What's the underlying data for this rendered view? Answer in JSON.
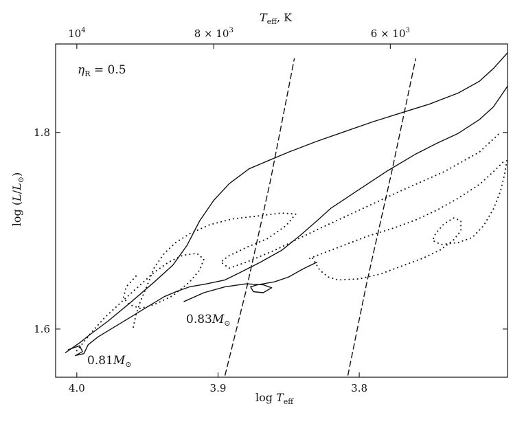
{
  "chart_data": {
    "type": "line",
    "xlabel": "log  T_eff",
    "ylabel": "log (L/L_⊙)",
    "x2label": "T_eff,  K",
    "xlim": [
      4.015,
      3.695
    ],
    "ylim": [
      1.551,
      1.89
    ],
    "x_ticks": [
      {
        "value": 4.0,
        "label": "4.0"
      },
      {
        "value": 3.9,
        "label": "3.9"
      },
      {
        "value": 3.8,
        "label": "3.8"
      }
    ],
    "y_ticks": [
      {
        "value": 1.6,
        "label": "1.6"
      },
      {
        "value": 1.8,
        "label": "1.8"
      }
    ],
    "top_ticks": [
      {
        "value": 4.0,
        "label": "10^4"
      },
      {
        "value": 3.903,
        "label": "8 × 10^3"
      },
      {
        "value": 3.778,
        "label": "6 × 10^3"
      }
    ],
    "annotation": "η_R = 0.5",
    "series_labels": [
      {
        "text": "0.83M_⊙",
        "x": 3.935,
        "y": 1.607
      },
      {
        "text": "0.81M_⊙",
        "x": 3.99,
        "y": 1.565
      }
    ],
    "series": [
      {
        "style": "solid",
        "points": [
          [
            4.008,
            1.576
          ],
          [
            3.998,
            1.586
          ],
          [
            3.991,
            1.594
          ],
          [
            3.978,
            1.608
          ],
          [
            3.962,
            1.627
          ],
          [
            3.945,
            1.648
          ],
          [
            3.932,
            1.665
          ],
          [
            3.922,
            1.685
          ],
          [
            3.913,
            1.71
          ],
          [
            3.903,
            1.731
          ],
          [
            3.892,
            1.748
          ],
          [
            3.878,
            1.763
          ],
          [
            3.865,
            1.771
          ],
          [
            3.85,
            1.78
          ],
          [
            3.83,
            1.791
          ],
          [
            3.81,
            1.801
          ],
          [
            3.79,
            1.811
          ],
          [
            3.77,
            1.82
          ],
          [
            3.75,
            1.829
          ],
          [
            3.73,
            1.84
          ],
          [
            3.715,
            1.852
          ],
          [
            3.705,
            1.865
          ],
          [
            3.695,
            1.881
          ]
        ]
      },
      {
        "style": "solid",
        "points": [
          [
            4.006,
            1.579
          ],
          [
            3.998,
            1.583
          ],
          [
            3.996,
            1.577
          ],
          [
            4.001,
            1.573
          ],
          [
            3.995,
            1.575
          ],
          [
            3.992,
            1.584
          ],
          [
            3.985,
            1.592
          ],
          [
            3.97,
            1.605
          ],
          [
            3.953,
            1.62
          ],
          [
            3.938,
            1.633
          ],
          [
            3.928,
            1.639
          ],
          [
            3.92,
            1.643
          ],
          [
            3.908,
            1.646
          ],
          [
            3.895,
            1.65
          ],
          [
            3.885,
            1.657
          ],
          [
            3.87,
            1.668
          ],
          [
            3.855,
            1.68
          ],
          [
            3.842,
            1.695
          ],
          [
            3.83,
            1.71
          ],
          [
            3.82,
            1.723
          ],
          [
            3.8,
            1.742
          ],
          [
            3.78,
            1.761
          ],
          [
            3.76,
            1.778
          ],
          [
            3.745,
            1.789
          ],
          [
            3.73,
            1.799
          ],
          [
            3.715,
            1.813
          ],
          [
            3.705,
            1.826
          ],
          [
            3.695,
            1.847
          ]
        ]
      },
      {
        "style": "solid",
        "points": [
          [
            3.924,
            1.628
          ],
          [
            3.91,
            1.637
          ],
          [
            3.895,
            1.643
          ],
          [
            3.88,
            1.646
          ],
          [
            3.868,
            1.645
          ],
          [
            3.862,
            1.642
          ],
          [
            3.868,
            1.637
          ],
          [
            3.875,
            1.638
          ],
          [
            3.877,
            1.643
          ],
          [
            3.872,
            1.645
          ],
          [
            3.86,
            1.648
          ],
          [
            3.85,
            1.653
          ],
          [
            3.84,
            1.661
          ],
          [
            3.83,
            1.668
          ]
        ]
      },
      {
        "style": "dotted",
        "points": [
          [
            3.96,
            1.602
          ],
          [
            3.958,
            1.615
          ],
          [
            3.955,
            1.628
          ],
          [
            3.95,
            1.645
          ],
          [
            3.945,
            1.663
          ],
          [
            3.938,
            1.677
          ],
          [
            3.93,
            1.688
          ],
          [
            3.92,
            1.697
          ],
          [
            3.906,
            1.706
          ],
          [
            3.89,
            1.712
          ],
          [
            3.872,
            1.715
          ],
          [
            3.855,
            1.718
          ],
          [
            3.845,
            1.717
          ],
          [
            3.852,
            1.705
          ],
          [
            3.865,
            1.692
          ],
          [
            3.88,
            1.683
          ],
          [
            3.893,
            1.674
          ],
          [
            3.898,
            1.668
          ],
          [
            3.892,
            1.662
          ],
          [
            3.88,
            1.668
          ],
          [
            3.86,
            1.68
          ],
          [
            3.83,
            1.701
          ],
          [
            3.8,
            1.721
          ],
          [
            3.77,
            1.741
          ],
          [
            3.74,
            1.76
          ],
          [
            3.715,
            1.78
          ],
          [
            3.7,
            1.8
          ]
        ]
      },
      {
        "style": "dotted",
        "points": [
          [
            4.0,
            1.578
          ],
          [
            3.99,
            1.596
          ],
          [
            3.98,
            1.612
          ],
          [
            3.968,
            1.628
          ],
          [
            3.955,
            1.645
          ],
          [
            3.945,
            1.658
          ],
          [
            3.935,
            1.668
          ],
          [
            3.925,
            1.675
          ],
          [
            3.915,
            1.677
          ],
          [
            3.91,
            1.671
          ],
          [
            3.913,
            1.66
          ],
          [
            3.92,
            1.648
          ],
          [
            3.932,
            1.634
          ],
          [
            3.945,
            1.625
          ],
          [
            3.955,
            1.621
          ],
          [
            3.963,
            1.625
          ],
          [
            3.967,
            1.632
          ],
          [
            3.965,
            1.643
          ],
          [
            3.958,
            1.654
          ]
        ]
      },
      {
        "style": "dotted",
        "points": [
          [
            3.833,
            1.672
          ],
          [
            3.828,
            1.66
          ],
          [
            3.822,
            1.653
          ],
          [
            3.815,
            1.65
          ],
          [
            3.8,
            1.651
          ],
          [
            3.785,
            1.656
          ],
          [
            3.77,
            1.664
          ],
          [
            3.755,
            1.672
          ],
          [
            3.742,
            1.681
          ],
          [
            3.733,
            1.691
          ],
          [
            3.728,
            1.7
          ],
          [
            3.728,
            1.71
          ],
          [
            3.733,
            1.713
          ],
          [
            3.74,
            1.707
          ],
          [
            3.746,
            1.697
          ],
          [
            3.748,
            1.69
          ],
          [
            3.742,
            1.686
          ],
          [
            3.73,
            1.688
          ],
          [
            3.72,
            1.693
          ],
          [
            3.712,
            1.705
          ],
          [
            3.705,
            1.722
          ],
          [
            3.7,
            1.74
          ],
          [
            3.697,
            1.758
          ],
          [
            3.695,
            1.775
          ]
        ]
      },
      {
        "style": "dotted",
        "points": [
          [
            3.835,
            1.672
          ],
          [
            3.815,
            1.683
          ],
          [
            3.795,
            1.694
          ],
          [
            3.775,
            1.703
          ],
          [
            3.76,
            1.711
          ],
          [
            3.745,
            1.721
          ],
          [
            3.73,
            1.733
          ],
          [
            3.715,
            1.747
          ],
          [
            3.705,
            1.76
          ],
          [
            3.698,
            1.77
          ]
        ]
      },
      {
        "style": "dashed",
        "points": [
          [
            3.895,
            1.553
          ],
          [
            3.88,
            1.64
          ],
          [
            3.863,
            1.75
          ],
          [
            3.848,
            1.86
          ],
          [
            3.846,
            1.875
          ]
        ]
      },
      {
        "style": "dashed",
        "points": [
          [
            3.808,
            1.553
          ],
          [
            3.795,
            1.645
          ],
          [
            3.777,
            1.76
          ],
          [
            3.76,
            1.875
          ]
        ]
      }
    ]
  }
}
